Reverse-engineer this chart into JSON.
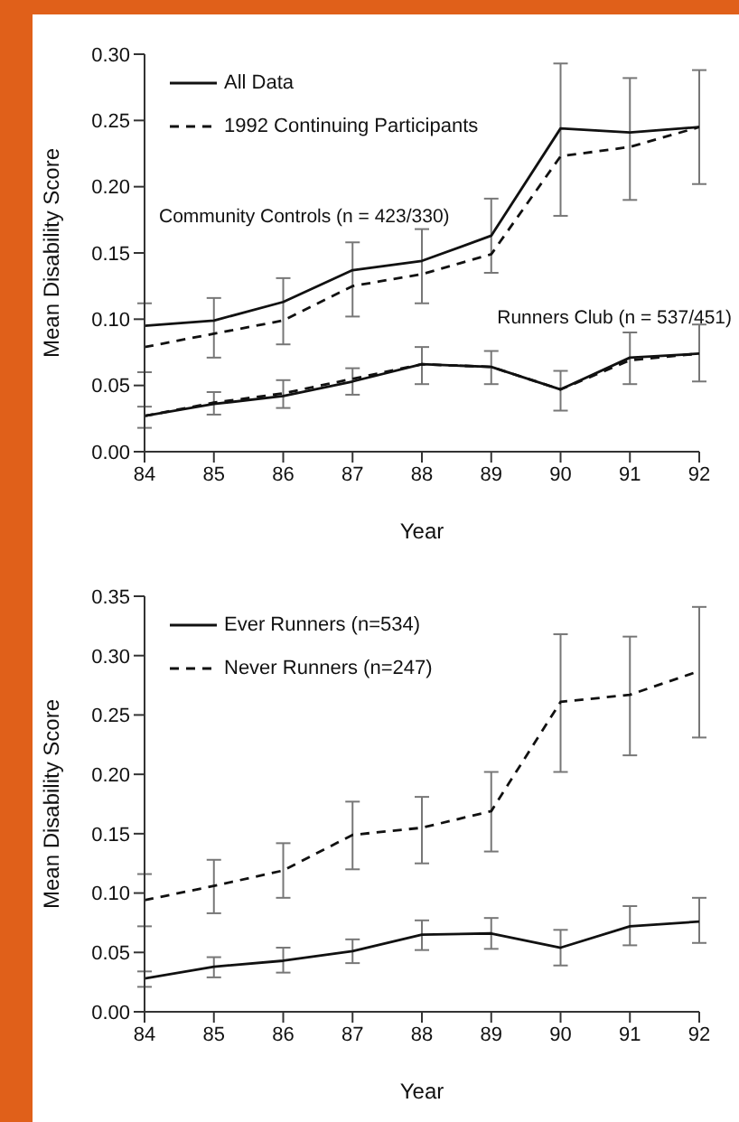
{
  "chart_data": [
    {
      "type": "line",
      "xlabel": "Year",
      "ylabel": "Mean Disability Score",
      "x": [
        84,
        85,
        86,
        87,
        88,
        89,
        90,
        91,
        92
      ],
      "xlim": [
        84,
        92
      ],
      "xticks": [
        84,
        85,
        86,
        87,
        88,
        89,
        90,
        91,
        92
      ],
      "ylim": [
        0,
        0.3
      ],
      "yticks": [
        {
          "value": 0,
          "label": "0.00"
        },
        {
          "value": 0.05,
          "label": "0.05"
        },
        {
          "value": 0.1,
          "label": "0.10"
        },
        {
          "value": 0.15,
          "label": "0.15"
        },
        {
          "value": 0.2,
          "label": "0.20"
        },
        {
          "value": 0.25,
          "label": "0.25"
        },
        {
          "value": 0.3,
          "label": "0.30"
        }
      ],
      "grid": false,
      "legend": "top left",
      "marker": "none",
      "series": [
        {
          "name": "All Data",
          "color": "#111111",
          "line_style": "solid",
          "values": [
            0.095,
            0.099,
            0.113,
            0.137,
            0.144,
            0.163,
            0.244,
            0.241,
            0.245
          ],
          "errors": [
            [
              0.06,
              0.112
            ],
            [
              0.071,
              0.116
            ],
            [
              0.081,
              0.131
            ],
            [
              0.102,
              0.158
            ],
            [
              0.112,
              0.168
            ],
            [
              0.135,
              0.191
            ],
            [
              0.178,
              0.293
            ],
            [
              0.19,
              0.282
            ],
            [
              0.202,
              0.288
            ]
          ]
        },
        {
          "name": "1992 Continuing Participants",
          "color": "#111111",
          "line_style": "dashed",
          "values": [
            0.079,
            0.089,
            0.099,
            0.125,
            0.134,
            0.149,
            0.223,
            0.23,
            0.245
          ]
        },
        {
          "color": "#111111",
          "line_style": "solid",
          "values": [
            0.027,
            0.036,
            0.042,
            0.053,
            0.066,
            0.064,
            0.047,
            0.071,
            0.074
          ],
          "errors": [
            [
              0.018,
              0.034
            ],
            [
              0.028,
              0.045
            ],
            [
              0.033,
              0.054
            ],
            [
              0.043,
              0.063
            ],
            [
              0.051,
              0.079
            ],
            [
              0.051,
              0.076
            ],
            [
              0.031,
              0.061
            ],
            [
              0.051,
              0.09
            ],
            [
              0.053,
              0.096
            ]
          ]
        },
        {
          "color": "#111111",
          "line_style": "dashed",
          "values": [
            0.027,
            0.037,
            0.044,
            0.055,
            0.066,
            0.064,
            0.047,
            0.069,
            0.074
          ]
        }
      ],
      "annotations": [
        "Community Controls (n = 423/330)",
        "Runners Club (n = 537/451)"
      ]
    },
    {
      "type": "line",
      "xlabel": "Year",
      "ylabel": "Mean Disability Score",
      "x": [
        84,
        85,
        86,
        87,
        88,
        89,
        90,
        91,
        92
      ],
      "xlim": [
        84,
        92
      ],
      "xticks": [
        84,
        85,
        86,
        87,
        88,
        89,
        90,
        91,
        92
      ],
      "ylim": [
        0,
        0.35
      ],
      "yticks": [
        {
          "value": 0,
          "label": "0.00"
        },
        {
          "value": 0.05,
          "label": "0.05"
        },
        {
          "value": 0.1,
          "label": "0.10"
        },
        {
          "value": 0.15,
          "label": "0.15"
        },
        {
          "value": 0.2,
          "label": "0.20"
        },
        {
          "value": 0.25,
          "label": "0.25"
        },
        {
          "value": 0.3,
          "label": "0.30"
        },
        {
          "value": 0.35,
          "label": "0.35"
        }
      ],
      "grid": false,
      "legend": "top left",
      "marker": "none",
      "series": [
        {
          "name": "Ever Runners (n=534)",
          "color": "#111111",
          "line_style": "solid",
          "values": [
            0.028,
            0.038,
            0.043,
            0.051,
            0.065,
            0.066,
            0.054,
            0.072,
            0.076
          ],
          "errors": [
            [
              0.021,
              0.034
            ],
            [
              0.029,
              0.046
            ],
            [
              0.033,
              0.054
            ],
            [
              0.041,
              0.061
            ],
            [
              0.052,
              0.077
            ],
            [
              0.053,
              0.079
            ],
            [
              0.039,
              0.069
            ],
            [
              0.056,
              0.089
            ],
            [
              0.058,
              0.096
            ]
          ]
        },
        {
          "name": "Never Runners (n=247)",
          "color": "#111111",
          "line_style": "dashed",
          "values": [
            0.094,
            0.106,
            0.119,
            0.149,
            0.155,
            0.169,
            0.261,
            0.267,
            0.287
          ],
          "errors": [
            [
              0.072,
              0.116
            ],
            [
              0.083,
              0.128
            ],
            [
              0.096,
              0.142
            ],
            [
              0.12,
              0.177
            ],
            [
              0.125,
              0.181
            ],
            [
              0.135,
              0.202
            ],
            [
              0.202,
              0.318
            ],
            [
              0.216,
              0.316
            ],
            [
              0.231,
              0.341
            ]
          ]
        }
      ]
    }
  ]
}
